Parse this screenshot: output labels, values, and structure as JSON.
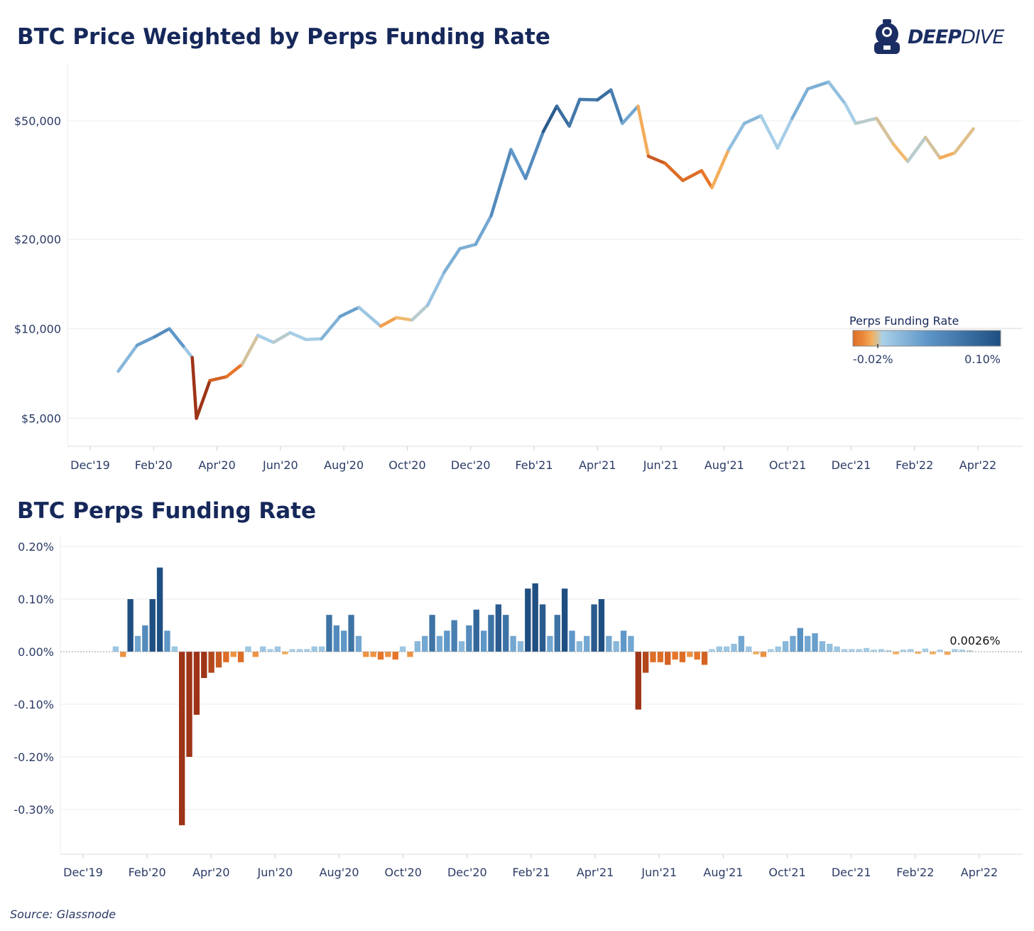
{
  "logo": {
    "text_bold": "DEEP",
    "text_thin": "DIVE"
  },
  "source": "Source: Glassnode",
  "colors": {
    "title": "#16285a",
    "neg_dark": "#9e3417",
    "neg": "#e8762a",
    "neg_light": "#f5b865",
    "zero": "#a9d0e8",
    "pos_mid": "#5e97c8",
    "pos_dark": "#1f4f82"
  },
  "chart_data": [
    {
      "type": "line",
      "title": "BTC Price Weighted by Perps Funding Rate",
      "yscale": "log",
      "ylim": [
        4000,
        80000
      ],
      "yticks": [
        5000,
        10000,
        20000,
        50000
      ],
      "ytick_labels": [
        "$5,000",
        "$10,000",
        "$20,000",
        "$50,000"
      ],
      "xtick_labels": [
        "Dec'19",
        "Feb'20",
        "Apr'20",
        "Jun'20",
        "Aug'20",
        "Oct'20",
        "Dec'20",
        "Feb'21",
        "Apr'21",
        "Jun'21",
        "Aug'21",
        "Oct'21",
        "Dec'21",
        "Feb'22",
        "Apr'22"
      ],
      "legend": {
        "title": "Perps Funding Rate",
        "min_label": "-0.02%",
        "max_label": "0.10%",
        "placement": "right-middle"
      },
      "points": [
        [
          "2019-12-28",
          7200,
          0.01
        ],
        [
          "2020-01-15",
          8800,
          0.03
        ],
        [
          "2020-02-01",
          9400,
          0.04
        ],
        [
          "2020-02-15",
          10000,
          0.06
        ],
        [
          "2020-03-01",
          8600,
          0.02
        ],
        [
          "2020-03-08",
          8000,
          0.0
        ],
        [
          "2020-03-12",
          5000,
          -0.1
        ],
        [
          "2020-03-25",
          6700,
          -0.03
        ],
        [
          "2020-04-10",
          6900,
          -0.02
        ],
        [
          "2020-04-25",
          7600,
          -0.01
        ],
        [
          "2020-05-10",
          9500,
          0.01
        ],
        [
          "2020-05-25",
          9000,
          0.0
        ],
        [
          "2020-06-10",
          9700,
          0.005
        ],
        [
          "2020-06-25",
          9200,
          0.005
        ],
        [
          "2020-07-10",
          9250,
          0.005
        ],
        [
          "2020-07-28",
          11000,
          0.04
        ],
        [
          "2020-08-15",
          11800,
          0.03
        ],
        [
          "2020-09-05",
          10200,
          -0.01
        ],
        [
          "2020-09-20",
          10900,
          -0.005
        ],
        [
          "2020-10-05",
          10700,
          0.0
        ],
        [
          "2020-10-20",
          12000,
          0.005
        ],
        [
          "2020-11-05",
          15500,
          0.02
        ],
        [
          "2020-11-20",
          18600,
          0.03
        ],
        [
          "2020-12-05",
          19200,
          0.02
        ],
        [
          "2020-12-20",
          24000,
          0.04
        ],
        [
          "2021-01-08",
          40000,
          0.06
        ],
        [
          "2021-01-22",
          32000,
          0.02
        ],
        [
          "2021-02-08",
          46000,
          0.08
        ],
        [
          "2021-02-21",
          56000,
          0.1
        ],
        [
          "2021-03-05",
          48000,
          0.05
        ],
        [
          "2021-03-15",
          59000,
          0.08
        ],
        [
          "2021-04-01",
          58800,
          0.05
        ],
        [
          "2021-04-14",
          63500,
          0.1
        ],
        [
          "2021-04-25",
          49000,
          0.02
        ],
        [
          "2021-05-10",
          56000,
          0.04
        ],
        [
          "2021-05-20",
          38000,
          -0.05
        ],
        [
          "2021-06-05",
          36000,
          -0.01
        ],
        [
          "2021-06-22",
          31500,
          -0.03
        ],
        [
          "2021-07-10",
          34000,
          -0.01
        ],
        [
          "2021-07-20",
          29800,
          -0.02
        ],
        [
          "2021-08-05",
          40000,
          0.01
        ],
        [
          "2021-08-20",
          49000,
          0.02
        ],
        [
          "2021-09-05",
          52000,
          0.02
        ],
        [
          "2021-09-21",
          40500,
          -0.01
        ],
        [
          "2021-10-05",
          51000,
          0.02
        ],
        [
          "2021-10-20",
          64000,
          0.03
        ],
        [
          "2021-11-09",
          67500,
          0.02
        ],
        [
          "2021-11-25",
          57000,
          0.01
        ],
        [
          "2021-12-05",
          49000,
          0.0
        ],
        [
          "2021-12-25",
          51000,
          0.005
        ],
        [
          "2022-01-10",
          41800,
          -0.005
        ],
        [
          "2022-01-24",
          36500,
          0.0
        ],
        [
          "2022-02-10",
          44000,
          0.005
        ],
        [
          "2022-02-24",
          37500,
          -0.005
        ],
        [
          "2022-03-10",
          39000,
          -0.005
        ],
        [
          "2022-03-28",
          47000,
          0.003
        ]
      ]
    },
    {
      "type": "bar",
      "title": "BTC Perps Funding Rate",
      "ylabel_unit": "%",
      "ylim": [
        -0.35,
        0.22
      ],
      "yticks": [
        0.2,
        0.1,
        0.0,
        -0.1,
        -0.2,
        -0.3
      ],
      "ytick_labels": [
        "0.20%",
        "0.10%",
        "0.00%",
        "-0.10%",
        "-0.20%",
        "-0.30%"
      ],
      "xtick_labels": [
        "Dec'19",
        "Feb'20",
        "Apr'20",
        "Jun'20",
        "Aug'20",
        "Oct'20",
        "Dec'20",
        "Feb'21",
        "Apr'21",
        "Jun'21",
        "Aug'21",
        "Oct'21",
        "Dec'21",
        "Feb'22",
        "Apr'22"
      ],
      "start_date": "2020-01-01",
      "step_days": 7,
      "annotation": "0.0026%",
      "values": [
        0.01,
        -0.01,
        0.1,
        0.03,
        0.05,
        0.1,
        0.16,
        0.04,
        0.01,
        -0.33,
        -0.2,
        -0.12,
        -0.05,
        -0.04,
        -0.03,
        -0.02,
        -0.01,
        -0.02,
        0.01,
        -0.01,
        0.01,
        0.005,
        0.01,
        -0.005,
        0.005,
        0.005,
        0.005,
        0.01,
        0.01,
        0.07,
        0.05,
        0.04,
        0.07,
        0.03,
        -0.01,
        -0.01,
        -0.015,
        -0.01,
        -0.015,
        0.01,
        -0.01,
        0.02,
        0.03,
        0.07,
        0.03,
        0.04,
        0.06,
        0.02,
        0.05,
        0.08,
        0.04,
        0.07,
        0.09,
        0.07,
        0.03,
        0.02,
        0.12,
        0.13,
        0.09,
        0.03,
        0.07,
        0.12,
        0.04,
        0.02,
        0.03,
        0.09,
        0.1,
        0.03,
        0.02,
        0.04,
        0.03,
        -0.11,
        -0.04,
        -0.02,
        -0.02,
        -0.025,
        -0.015,
        -0.02,
        -0.01,
        -0.015,
        -0.025,
        0.005,
        0.01,
        0.01,
        0.015,
        0.03,
        0.01,
        -0.005,
        -0.01,
        0.005,
        0.01,
        0.02,
        0.03,
        0.045,
        0.03,
        0.035,
        0.02,
        0.015,
        0.01,
        0.005,
        0.005,
        0.005,
        0.007,
        0.004,
        0.005,
        0.003,
        -0.005,
        0.004,
        0.005,
        -0.004,
        0.006,
        -0.005,
        0.004,
        -0.006,
        0.005,
        0.004,
        0.0026
      ]
    }
  ]
}
